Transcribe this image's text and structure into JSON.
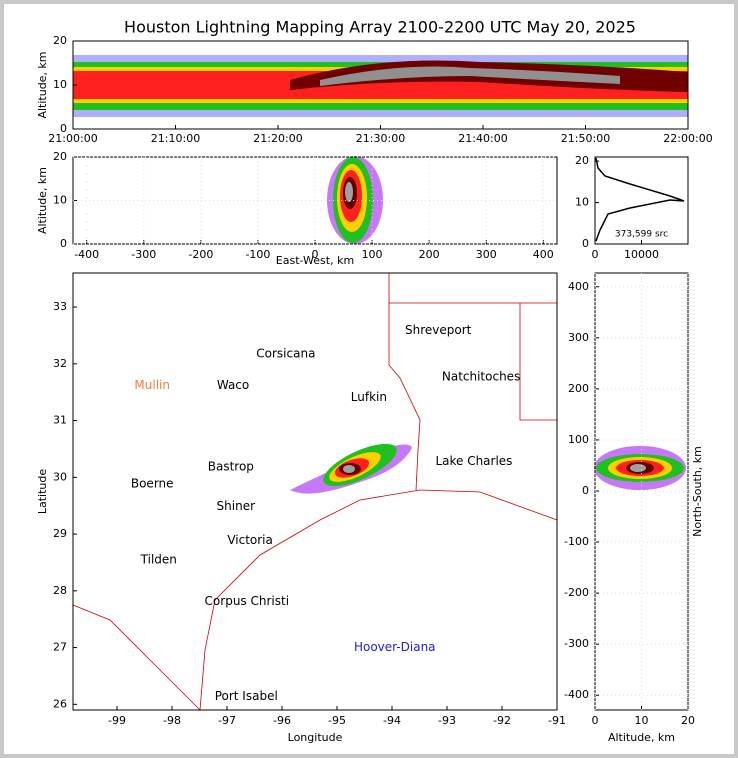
{
  "chart_data": [
    {
      "type": "heatmap",
      "title": "Houston Lightning Mapping Array 2100-2200 UTC May 20, 2025",
      "ylabel": "Altitude, km",
      "categories": [
        "21:00:00",
        "21:10:00",
        "21:20:00",
        "21:30:00",
        "21:40:00",
        "21:50:00",
        "22:00:00"
      ],
      "ylim": [
        0,
        20
      ],
      "yticks": [
        0,
        10,
        20
      ]
    },
    {
      "type": "heatmap",
      "xlabel": "East-West, km",
      "ylabel": "Altitude, km",
      "xlim": [
        -424,
        424
      ],
      "xticks": [
        -400,
        -300,
        -200,
        -100,
        0,
        100,
        200,
        300,
        400
      ],
      "ylim": [
        0,
        20
      ],
      "yticks": [
        0,
        10,
        20
      ],
      "grid": true
    },
    {
      "type": "histogram",
      "annotation": "373,599 src",
      "xlim": [
        0,
        20000
      ],
      "xticks": [
        0,
        10000
      ],
      "ylim": [
        0,
        21
      ],
      "yticks": [
        0,
        10,
        20
      ]
    },
    {
      "type": "map",
      "xlabel": "Longitude",
      "ylabel": "Latitude",
      "xlim": [
        -99.8,
        -91
      ],
      "xticks": [
        -99,
        -98,
        -97,
        -96,
        -95,
        -94,
        -93,
        -92,
        -91
      ],
      "ylim": [
        25.9,
        33.6
      ],
      "yticks": [
        26,
        27,
        28,
        29,
        30,
        31,
        32,
        33
      ],
      "labels": [
        {
          "text": "Shreveport",
          "lon": -93.16,
          "lat": 32.59,
          "color": "#000000"
        },
        {
          "text": "Corsicana",
          "lon": -95.93,
          "lat": 32.17,
          "color": "#000000"
        },
        {
          "text": "Mullin",
          "lon": -98.36,
          "lat": 31.62,
          "color": "#f08040"
        },
        {
          "text": "Waco",
          "lon": -96.89,
          "lat": 31.62,
          "color": "#000000"
        },
        {
          "text": "Natchitoches",
          "lon": -92.38,
          "lat": 31.77,
          "color": "#000000"
        },
        {
          "text": "Lufkin",
          "lon": -94.42,
          "lat": 31.41,
          "color": "#000000"
        },
        {
          "text": "Lake Charles",
          "lon": -92.51,
          "lat": 30.28,
          "color": "#000000"
        },
        {
          "text": "Bastrop",
          "lon": -96.93,
          "lat": 30.18,
          "color": "#000000"
        },
        {
          "text": "Boerne",
          "lon": -98.36,
          "lat": 29.88,
          "color": "#000000"
        },
        {
          "text": "Shiner",
          "lon": -96.84,
          "lat": 29.49,
          "color": "#000000"
        },
        {
          "text": "Victoria",
          "lon": -96.58,
          "lat": 28.89,
          "color": "#000000"
        },
        {
          "text": "Tilden",
          "lon": -98.24,
          "lat": 28.54,
          "color": "#000000"
        },
        {
          "text": "Corpus Christi",
          "lon": -96.64,
          "lat": 27.81,
          "color": "#000000"
        },
        {
          "text": "Hoover-Diana",
          "lon": -93.95,
          "lat": 27.0,
          "color": "#2020e0"
        },
        {
          "text": "Port Isabel",
          "lon": -96.65,
          "lat": 26.14,
          "color": "#000000"
        }
      ]
    },
    {
      "type": "heatmap",
      "xlabel": "Altitude, km",
      "ylabel": "North-South, km",
      "xlim": [
        0,
        20
      ],
      "xticks": [
        0,
        10,
        20
      ],
      "ylim": [
        -429,
        427
      ],
      "yticks": [
        -400,
        -300,
        -200,
        -100,
        0,
        100,
        200,
        300,
        400
      ],
      "grid": true
    }
  ]
}
